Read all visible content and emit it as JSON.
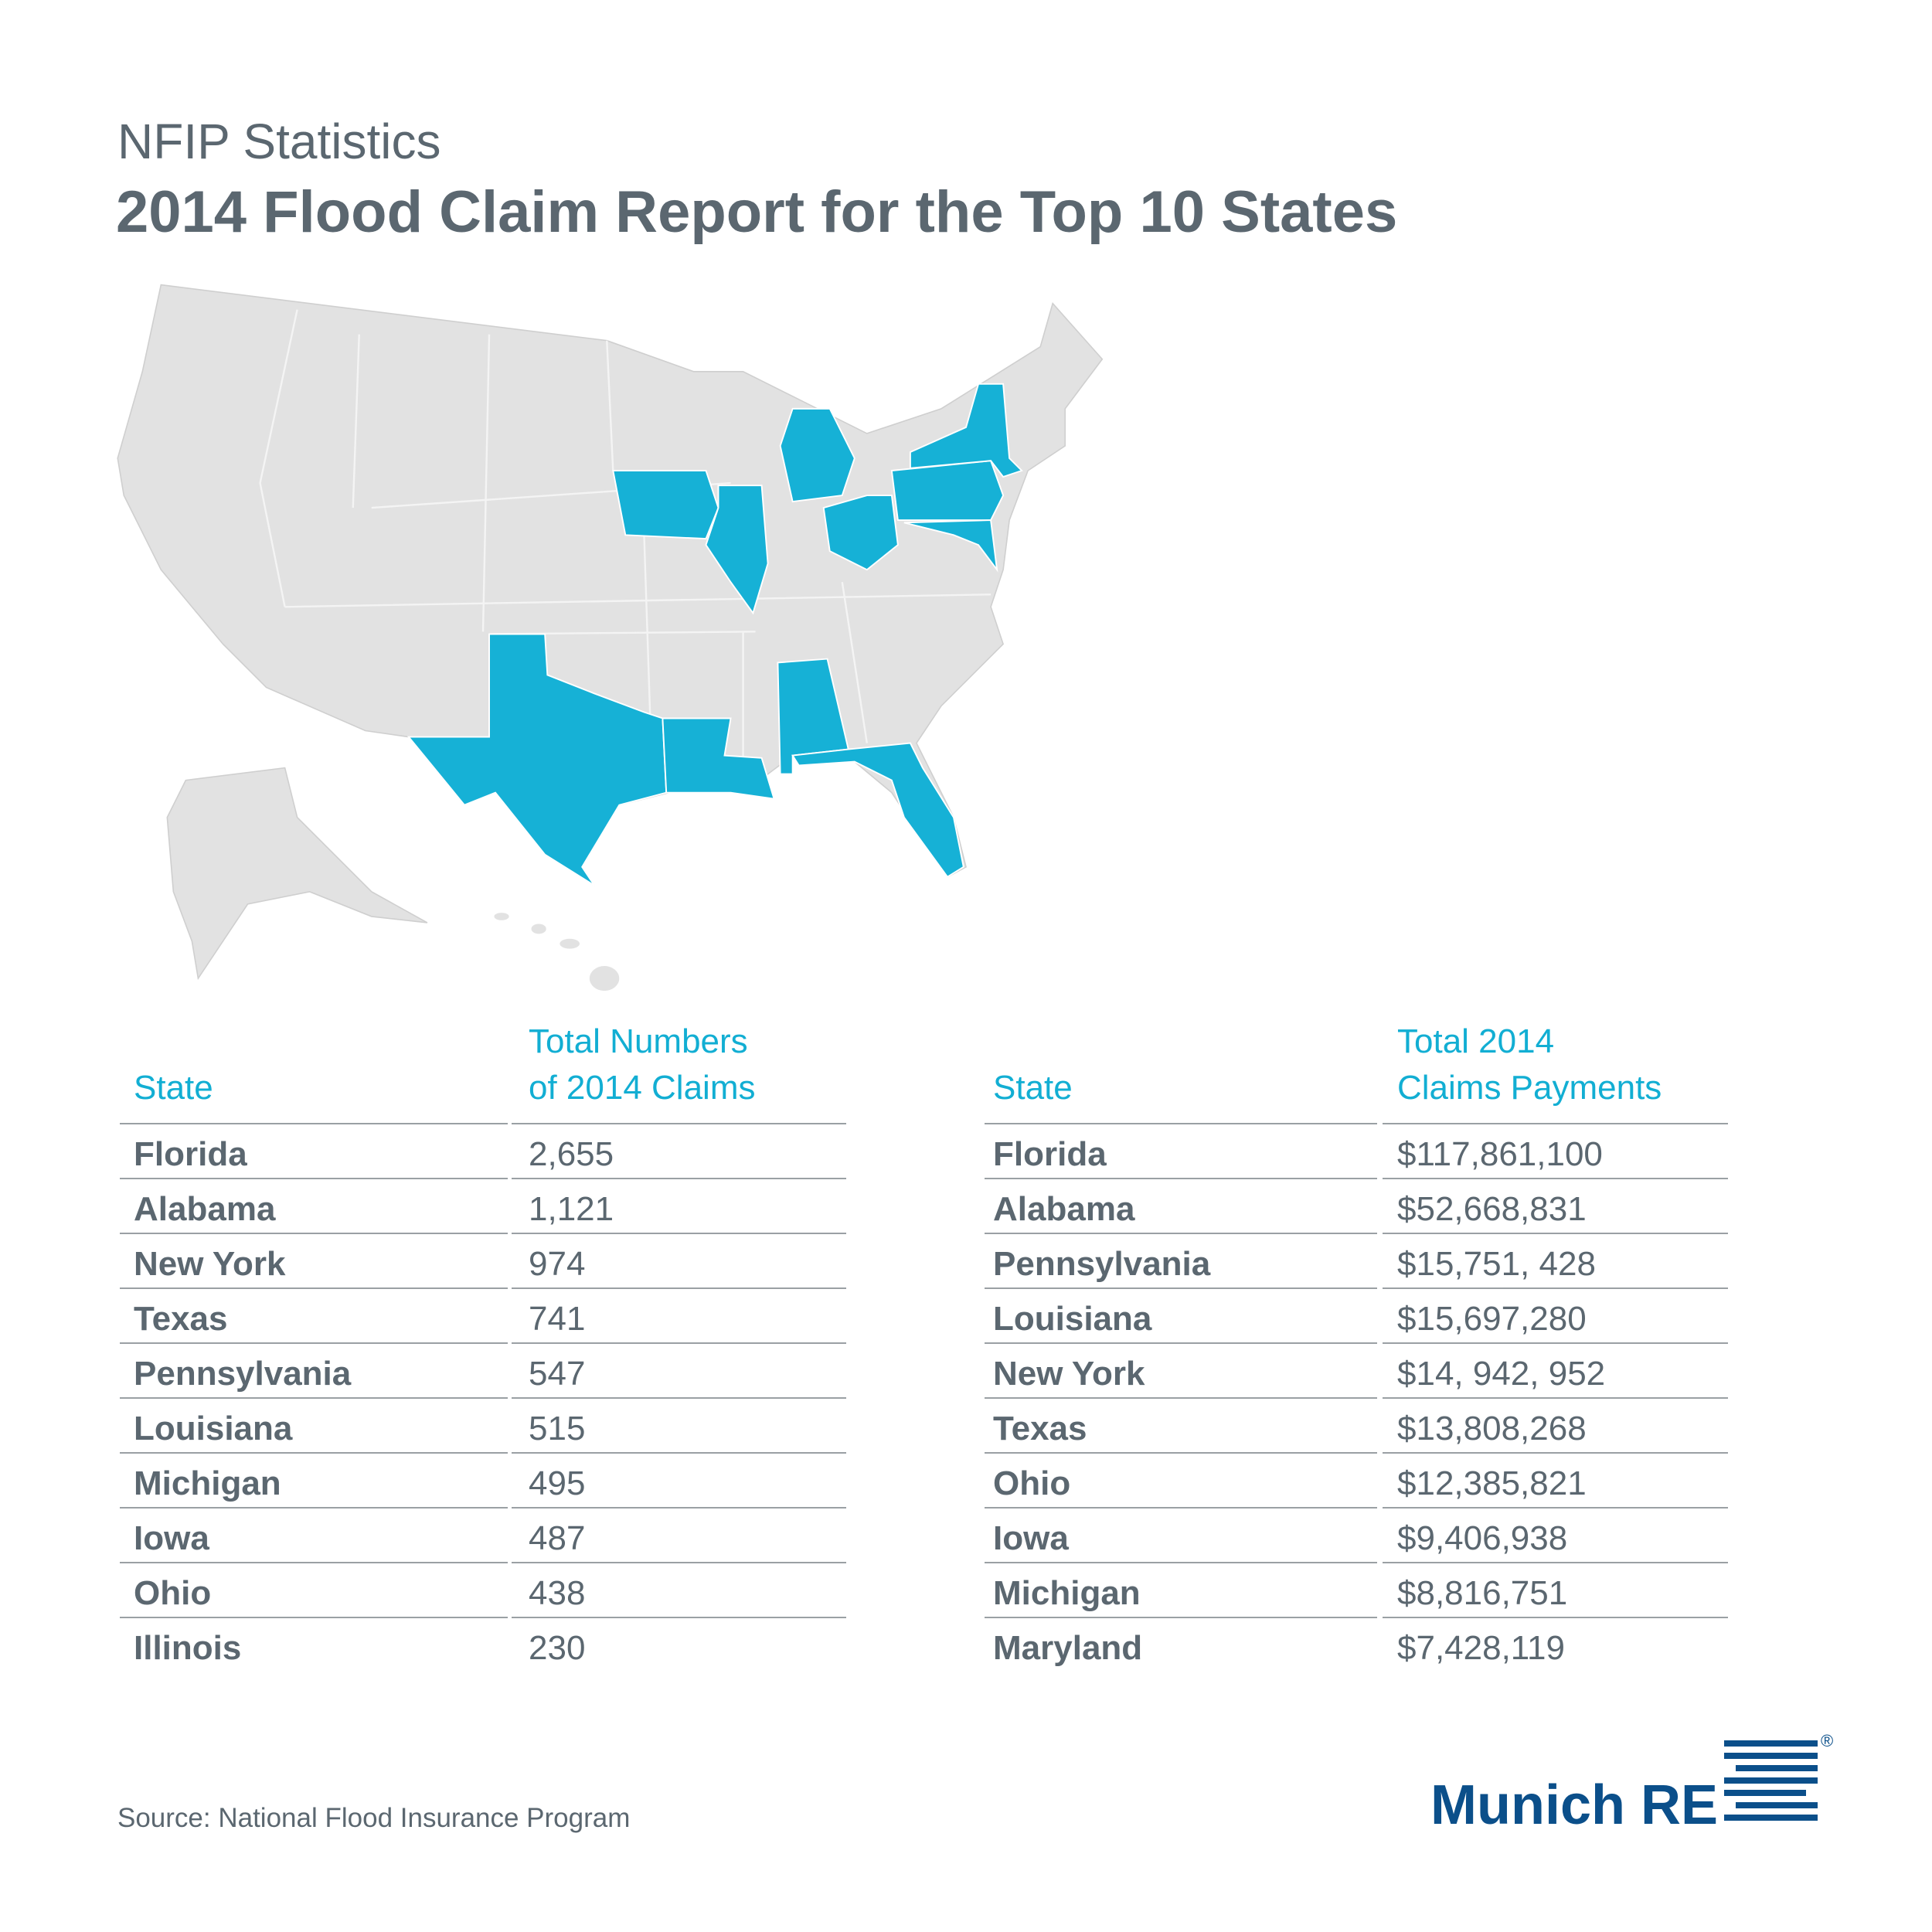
{
  "header": {
    "subtitle": "NFIP Statistics",
    "title": "2014 Flood Claim Report for the Top 10 States"
  },
  "tables": [
    {
      "headers": [
        "State",
        "Total Numbers\nof 2014 Claims"
      ],
      "rows": [
        [
          "Florida",
          "2,655"
        ],
        [
          "Alabama",
          "1,121"
        ],
        [
          "New York",
          "974"
        ],
        [
          "Texas",
          "741"
        ],
        [
          "Pennsylvania",
          "547"
        ],
        [
          "Louisiana",
          "515"
        ],
        [
          "Michigan",
          "495"
        ],
        [
          "Iowa",
          "487"
        ],
        [
          "Ohio",
          "438"
        ],
        [
          "Illinois",
          "230"
        ]
      ]
    },
    {
      "headers": [
        "State",
        "Total 2014\nClaims Payments"
      ],
      "rows": [
        [
          "Florida",
          "$117,861,100"
        ],
        [
          "Alabama",
          "$52,668,831"
        ],
        [
          "Pennsylvania",
          "$15,751, 428"
        ],
        [
          "Louisiana",
          "$15,697,280"
        ],
        [
          "New York",
          "$14, 942, 952"
        ],
        [
          "Texas",
          "$13,808,268"
        ],
        [
          "Ohio",
          "$12,385,821"
        ],
        [
          "Iowa",
          "$9,406,938"
        ],
        [
          "Michigan",
          "$8,816,751"
        ],
        [
          "Maryland",
          "$7,428,119"
        ]
      ]
    }
  ],
  "footer": {
    "source": "Source: National Flood Insurance Program",
    "logo": "Munich RE",
    "registered": "®"
  }
}
